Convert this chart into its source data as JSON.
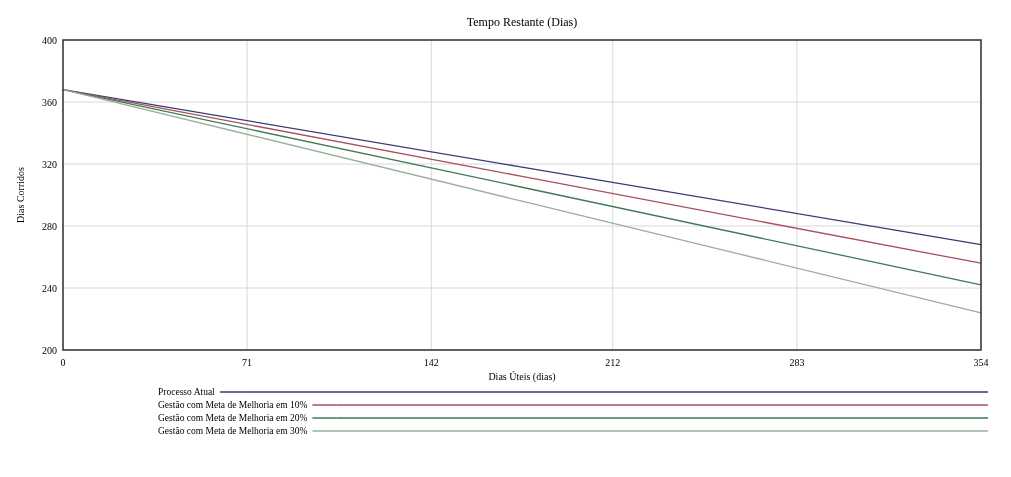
{
  "chart_data": {
    "type": "line",
    "title": "Tempo Restante (Dias)",
    "xlabel": "Dias Úteis (dias)",
    "ylabel": "Dias Corridos",
    "x": [
      0,
      177,
      354
    ],
    "series": [
      {
        "name": "Processo Atual",
        "color": "#3a3a7a",
        "values": [
          368,
          318,
          268
        ]
      },
      {
        "name": "Gestão com Meta de Melhoria em 10%",
        "color": "#a8505a",
        "values": [
          368,
          312,
          256
        ]
      },
      {
        "name": "Gestão com Meta de Melhoria em 20%",
        "color": "#3f7a55",
        "values": [
          368,
          305,
          242
        ]
      },
      {
        "name": "Gestão com Meta de Melhoria em 30%",
        "color": "#98b09c",
        "values": [
          368,
          296,
          224
        ]
      }
    ],
    "xlim": [
      0,
      354
    ],
    "xticks": [
      0,
      71,
      142,
      212,
      283,
      354
    ],
    "ylim": [
      200,
      400
    ],
    "yticks": [
      200,
      240,
      280,
      320,
      360,
      400
    ],
    "grid": true,
    "legend": "bottom",
    "line_style": "solid"
  }
}
